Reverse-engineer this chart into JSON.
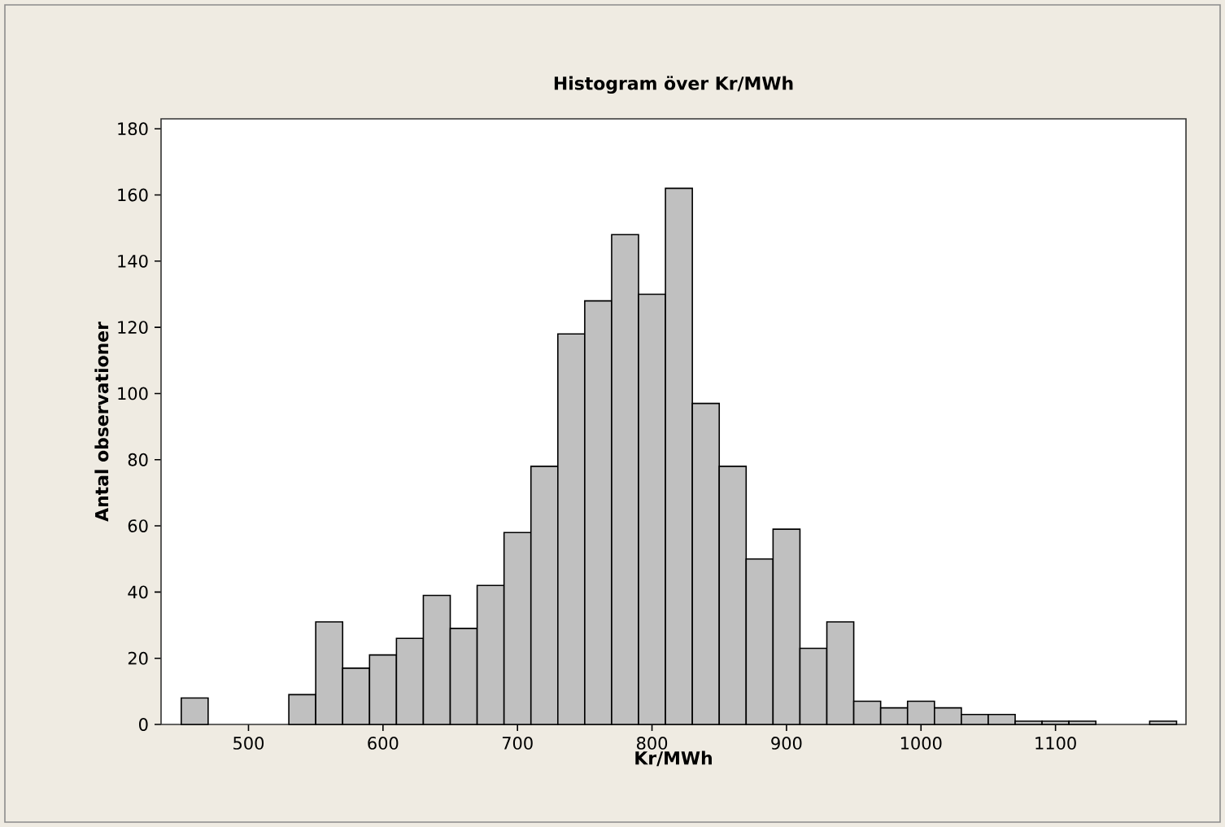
{
  "chart_data": {
    "type": "histogram",
    "title": "Histogram över Kr/MWh",
    "xlabel": "Kr/MWh",
    "ylabel": "Antal observationer",
    "bins": [
      450,
      470,
      490,
      510,
      530,
      550,
      570,
      590,
      610,
      630,
      650,
      670,
      690,
      710,
      730,
      750,
      770,
      790,
      810,
      830,
      850,
      870,
      890,
      910,
      930,
      950,
      970,
      990,
      1010,
      1030,
      1050,
      1070,
      1090,
      1110,
      1130,
      1150,
      1170,
      1190
    ],
    "values": [
      8,
      0,
      0,
      0,
      9,
      31,
      17,
      21,
      26,
      39,
      29,
      42,
      58,
      78,
      118,
      128,
      148,
      130,
      162,
      97,
      78,
      50,
      59,
      23,
      31,
      7,
      5,
      7,
      5,
      3,
      3,
      1,
      1,
      1,
      0,
      0,
      1
    ],
    "color": "#c0c0c0",
    "xlim": [
      435,
      1197
    ],
    "ylim": [
      0,
      183
    ],
    "xticks": [
      500,
      600,
      700,
      800,
      900,
      1000,
      1100
    ],
    "yticks": [
      0,
      20,
      40,
      60,
      80,
      100,
      120,
      140,
      160,
      180
    ]
  }
}
